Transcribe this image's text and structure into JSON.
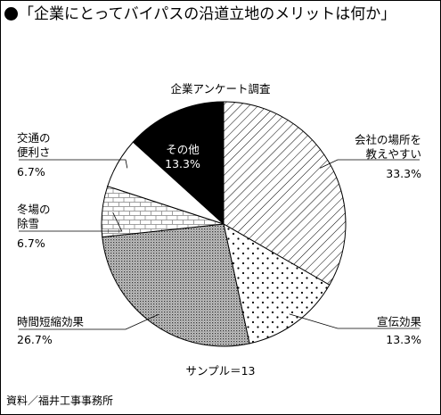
{
  "header": {
    "title": "「企業にとってバイパスの沿道立地のメリットは何か」"
  },
  "source": "資料／福井工事事務所",
  "chart_data": {
    "type": "pie",
    "title": "企業アンケート調査",
    "sample_note": "サンプル＝13",
    "slices": [
      {
        "label_lines": [
          "会社の場所を",
          "教えやすい"
        ],
        "value": 33.3,
        "value_text": "33.3%",
        "pattern": "diagonal-hatch"
      },
      {
        "label_lines": [
          "宣伝効果"
        ],
        "value": 13.3,
        "value_text": "13.3%",
        "pattern": "dots"
      },
      {
        "label_lines": [
          "時間短縮効果"
        ],
        "value": 26.7,
        "value_text": "26.7%",
        "pattern": "dense-stipple"
      },
      {
        "label_lines": [
          "冬場の",
          "除雪"
        ],
        "value": 6.7,
        "value_text": "6.7%",
        "pattern": "brick"
      },
      {
        "label_lines": [
          "交通の",
          "便利さ"
        ],
        "value": 6.7,
        "value_text": "6.7%",
        "pattern": "plain-white"
      },
      {
        "label_lines": [
          "その他"
        ],
        "value": 13.3,
        "value_text": "13.3%",
        "pattern": "solid-black"
      }
    ]
  }
}
